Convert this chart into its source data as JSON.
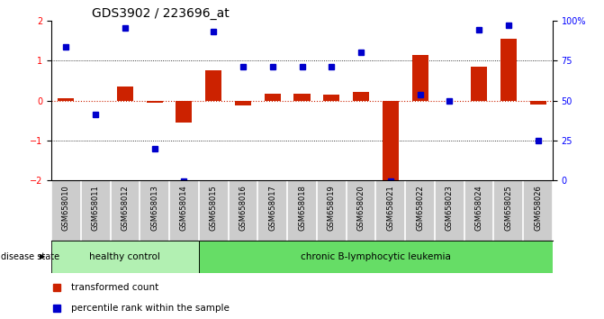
{
  "title": "GDS3902 / 223696_at",
  "samples": [
    "GSM658010",
    "GSM658011",
    "GSM658012",
    "GSM658013",
    "GSM658014",
    "GSM658015",
    "GSM658016",
    "GSM658017",
    "GSM658018",
    "GSM658019",
    "GSM658020",
    "GSM658021",
    "GSM658022",
    "GSM658023",
    "GSM658024",
    "GSM658025",
    "GSM658026"
  ],
  "red_bars": [
    0.05,
    -0.02,
    0.35,
    -0.05,
    -0.55,
    0.75,
    -0.12,
    0.18,
    0.18,
    0.15,
    0.22,
    -2.02,
    1.15,
    0.0,
    0.85,
    1.55,
    -0.1
  ],
  "blue_dots_left": [
    1.35,
    -0.35,
    1.82,
    -1.22,
    -2.02,
    1.72,
    0.85,
    0.85,
    0.85,
    0.85,
    1.2,
    -2.02,
    0.15,
    0.0,
    1.78,
    1.88,
    -1.0
  ],
  "healthy_count": 5,
  "group_colors": [
    "#b2f0b2",
    "#66dd66"
  ],
  "bar_color": "#cc2200",
  "dot_color": "#0000cc",
  "title_fontsize": 10,
  "tick_fontsize": 7,
  "label_fontsize": 7.5
}
